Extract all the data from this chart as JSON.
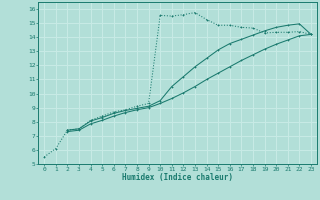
{
  "xlabel": "Humidex (Indice chaleur)",
  "bg_color": "#b2dfd8",
  "grid_color": "#c8ebe6",
  "line_color": "#1a7a6e",
  "xlim": [
    -0.5,
    23.5
  ],
  "ylim": [
    5,
    16.5
  ],
  "xticks": [
    0,
    1,
    2,
    3,
    4,
    5,
    6,
    7,
    8,
    9,
    10,
    11,
    12,
    13,
    14,
    15,
    16,
    17,
    18,
    19,
    20,
    21,
    22,
    23
  ],
  "yticks": [
    5,
    6,
    7,
    8,
    9,
    10,
    11,
    12,
    13,
    14,
    15,
    16
  ],
  "line1_x": [
    0,
    1,
    2,
    3,
    4,
    5,
    6,
    7,
    8,
    9,
    10,
    11,
    12,
    13,
    14,
    15,
    16,
    17,
    18,
    19,
    20,
    21,
    22,
    23
  ],
  "line1_y": [
    5.5,
    6.1,
    7.4,
    7.5,
    8.1,
    8.4,
    8.7,
    8.85,
    9.1,
    9.3,
    15.55,
    15.5,
    15.6,
    15.75,
    15.25,
    14.85,
    14.85,
    14.7,
    14.65,
    14.3,
    14.35,
    14.35,
    14.4,
    14.2
  ],
  "line2_x": [
    2,
    3,
    4,
    5,
    6,
    7,
    8,
    9,
    10,
    11,
    12,
    13,
    14,
    15,
    16,
    17,
    18,
    19,
    20,
    21,
    22,
    23
  ],
  "line2_y": [
    7.4,
    7.5,
    8.05,
    8.3,
    8.6,
    8.8,
    8.95,
    9.1,
    9.5,
    10.5,
    11.2,
    11.9,
    12.5,
    13.1,
    13.55,
    13.85,
    14.15,
    14.45,
    14.7,
    14.85,
    14.95,
    14.2
  ],
  "line3_x": [
    2,
    3,
    4,
    5,
    6,
    7,
    8,
    9,
    10,
    11,
    12,
    13,
    14,
    15,
    16,
    17,
    18,
    19,
    20,
    21,
    22,
    23
  ],
  "line3_y": [
    7.3,
    7.4,
    7.85,
    8.1,
    8.4,
    8.65,
    8.85,
    9.0,
    9.3,
    9.65,
    10.05,
    10.5,
    11.0,
    11.45,
    11.9,
    12.35,
    12.75,
    13.15,
    13.5,
    13.8,
    14.1,
    14.2
  ]
}
